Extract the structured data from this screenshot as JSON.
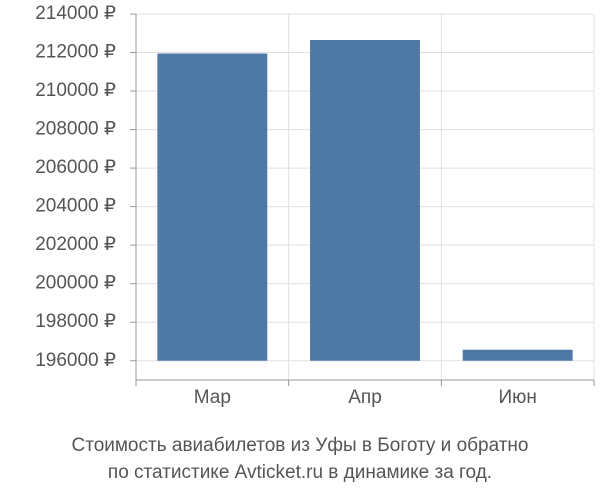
{
  "chart_data": {
    "type": "bar",
    "title": [
      "Стоимость авиабилетов из Уфы в Боготу и обратно",
      "по статистике Avticket.ru в динамике за год."
    ],
    "categories": [
      "Мар",
      "Апр",
      "Июн"
    ],
    "values": [
      211950,
      212650,
      196570
    ],
    "color": "#4e79a7",
    "ylim": [
      195000,
      214000
    ],
    "yticks": [
      {
        "value": 196000,
        "label": "196000 ₽"
      },
      {
        "value": 198000,
        "label": "198000 ₽"
      },
      {
        "value": 200000,
        "label": "200000 ₽"
      },
      {
        "value": 202000,
        "label": "202000 ₽"
      },
      {
        "value": 204000,
        "label": "204000 ₽"
      },
      {
        "value": 206000,
        "label": "206000 ₽"
      },
      {
        "value": 208000,
        "label": "208000 ₽"
      },
      {
        "value": 210000,
        "label": "210000 ₽"
      },
      {
        "value": 212000,
        "label": "212000 ₽"
      },
      {
        "value": 214000,
        "label": "214000 ₽"
      }
    ],
    "grid": true
  }
}
